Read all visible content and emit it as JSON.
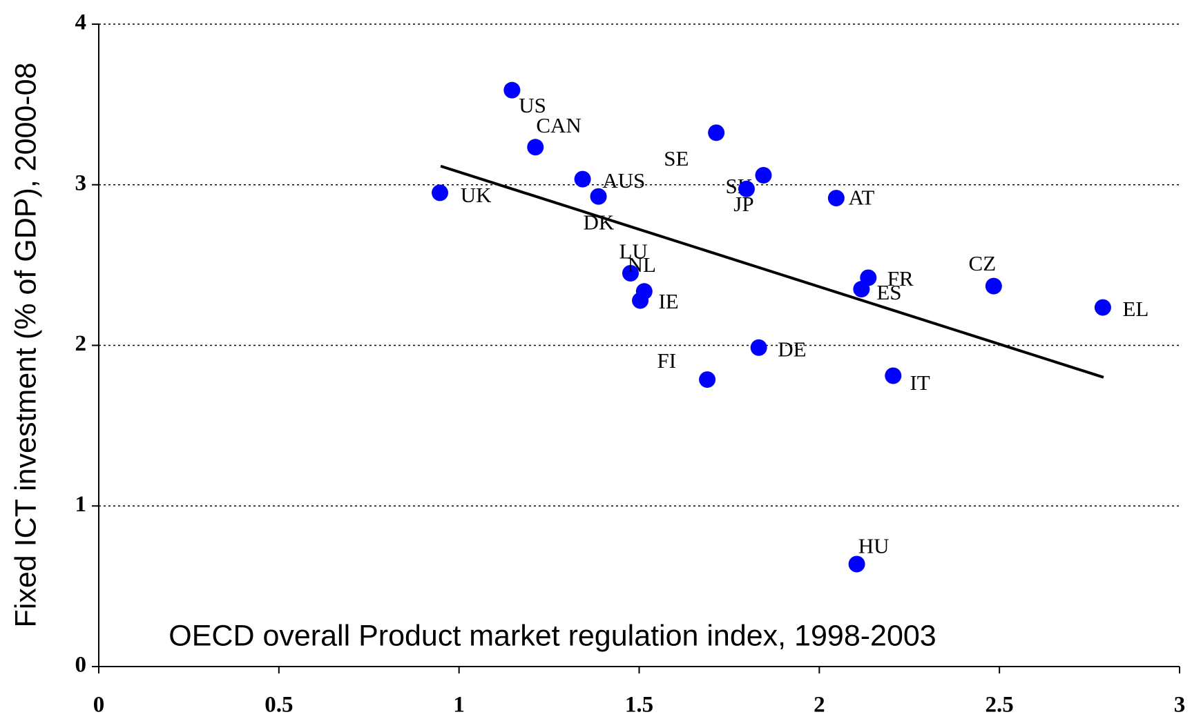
{
  "chart_data": {
    "type": "scatter",
    "xlabel": "OECD overall Product market regulation index, 1998-2003",
    "ylabel": "Fixed ICT investment (% of GDP), 2000-08",
    "labels": [
      "US",
      "CAN",
      "AUS",
      "DK",
      "UK",
      "SE",
      "SK",
      "JP",
      "AT",
      "LU",
      "NL",
      "IE",
      "FR",
      "ES",
      "CZ",
      "EL",
      "DE",
      "FI",
      "IT",
      "HU"
    ],
    "x": [
      1.147,
      1.212,
      1.343,
      1.387,
      0.947,
      1.714,
      1.845,
      1.798,
      2.047,
      1.476,
      1.514,
      1.503,
      2.136,
      2.117,
      2.484,
      2.787,
      1.832,
      1.689,
      2.205,
      2.104
    ],
    "values": [
      3.589,
      3.234,
      3.035,
      2.927,
      2.95,
      3.324,
      3.059,
      2.974,
      2.917,
      2.449,
      2.336,
      2.279,
      2.421,
      2.35,
      2.369,
      2.236,
      1.986,
      1.787,
      1.811,
      0.638
    ],
    "color": "#0000ff",
    "trend": {
      "x": [
        0.949,
        2.789
      ],
      "y": [
        3.116,
        1.801
      ],
      "color": "#000000"
    },
    "xlim": [
      0,
      3
    ],
    "xticks": [
      0,
      0.5,
      1,
      1.5,
      2,
      2.5,
      3
    ],
    "ylim": [
      0,
      4
    ],
    "yticks": [
      0,
      1,
      2,
      3,
      4
    ],
    "grid": true
  }
}
